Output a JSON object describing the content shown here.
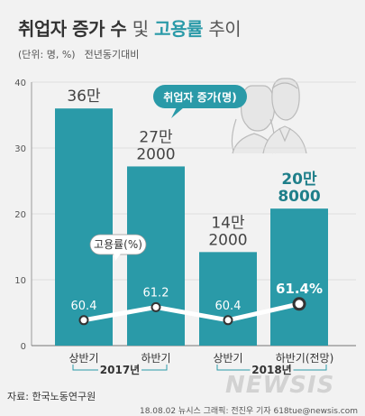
{
  "title": {
    "part1": "취업자 증가 수",
    "part2": "및",
    "part3": "고용률",
    "part4": "추이"
  },
  "subtitle": {
    "unit": "(단위: 명, %)",
    "basis": "전년동기대비"
  },
  "legend": {
    "bars": "취업자 증가(명)",
    "line": "고용률(%)"
  },
  "chart_data": {
    "type": "bar",
    "categories": [
      "상반기",
      "하반기",
      "상반기",
      "하반기(전망)"
    ],
    "groups": [
      {
        "label": "2017년",
        "categories": [
          0,
          1
        ]
      },
      {
        "label": "2018년",
        "categories": [
          2,
          3
        ]
      }
    ],
    "ylim": [
      0,
      40
    ],
    "yticks": [
      0,
      10,
      20,
      30,
      40
    ],
    "series": [
      {
        "name": "취업자 증가(명)",
        "unit": "만명",
        "values": [
          36,
          27.2,
          14.2,
          20.8
        ],
        "value_labels": [
          [
            "36만"
          ],
          [
            "27만",
            "2000"
          ],
          [
            "14만",
            "2000"
          ],
          [
            "20만",
            "8000"
          ]
        ]
      },
      {
        "name": "고용률(%)",
        "unit": "%",
        "values": [
          60.4,
          61.2,
          60.4,
          61.4
        ],
        "value_labels": [
          "60.4",
          "61.2",
          "60.4",
          "61.4%"
        ]
      }
    ],
    "colors": {
      "bar": "#2a9aa8",
      "bar_highlight_label": "#1f7f8a",
      "line": "#ffffff",
      "axis_text": "#555555",
      "gridline": "#d9d9d9"
    },
    "highlight_index": 3
  },
  "source": "자료: 한국노동연구원",
  "credit": "18.08.02 뉴시스 그래픽: 전진우 기자 618tue@newsis.com",
  "logo": "NEWSIS"
}
